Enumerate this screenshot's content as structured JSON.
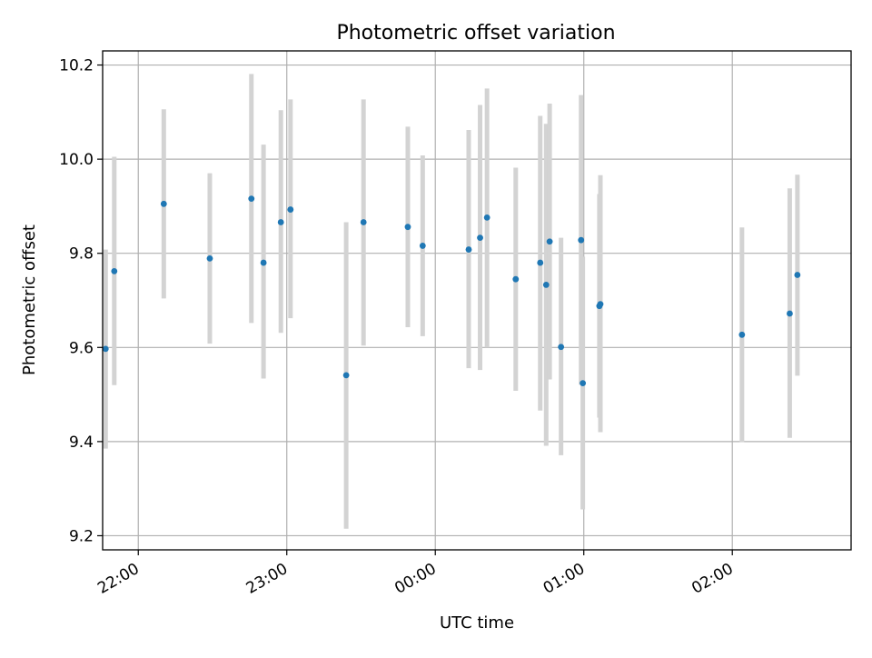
{
  "chart_data": {
    "type": "scatter",
    "title": "Photometric offset variation",
    "xlabel": "UTC time",
    "ylabel": "Photometric offset",
    "x_tick_labels": [
      "22:00",
      "23:00",
      "00:00",
      "01:00",
      "02:00"
    ],
    "y_tick_labels": [
      "9.2",
      "9.4",
      "9.6",
      "9.8",
      "10.0",
      "10.2"
    ],
    "x_ticks_min": [
      1320,
      1380,
      1440,
      1500,
      1560
    ],
    "y_ticks": [
      9.2,
      9.4,
      9.6,
      9.8,
      10.0,
      10.2
    ],
    "xlim_min": [
      1305.6,
      1608
    ],
    "ylim": [
      9.17,
      10.23
    ],
    "grid": true,
    "marker_color": "#1f77b4",
    "errorbar_color": "#d3d3d3",
    "points": [
      {
        "t_min": 1306.8,
        "y": 9.597,
        "ylo": 9.385,
        "yhi": 9.808
      },
      {
        "t_min": 1310.3,
        "y": 9.762,
        "ylo": 9.52,
        "yhi": 10.005
      },
      {
        "t_min": 1330.3,
        "y": 9.905,
        "ylo": 9.704,
        "yhi": 10.106
      },
      {
        "t_min": 1348.9,
        "y": 9.789,
        "ylo": 9.608,
        "yhi": 9.97
      },
      {
        "t_min": 1365.7,
        "y": 9.916,
        "ylo": 9.652,
        "yhi": 10.181
      },
      {
        "t_min": 1370.6,
        "y": 9.78,
        "ylo": 9.534,
        "yhi": 10.031
      },
      {
        "t_min": 1377.6,
        "y": 9.866,
        "ylo": 9.631,
        "yhi": 10.104
      },
      {
        "t_min": 1381.5,
        "y": 9.893,
        "ylo": 9.662,
        "yhi": 10.127
      },
      {
        "t_min": 1404.0,
        "y": 9.541,
        "ylo": 9.215,
        "yhi": 9.866
      },
      {
        "t_min": 1411.0,
        "y": 9.866,
        "ylo": 9.604,
        "yhi": 10.127
      },
      {
        "t_min": 1428.9,
        "y": 9.856,
        "ylo": 9.643,
        "yhi": 10.069
      },
      {
        "t_min": 1434.9,
        "y": 9.816,
        "ylo": 9.624,
        "yhi": 10.008
      },
      {
        "t_min": 1453.5,
        "y": 9.808,
        "ylo": 9.556,
        "yhi": 10.062
      },
      {
        "t_min": 1458.1,
        "y": 9.833,
        "ylo": 9.552,
        "yhi": 10.115
      },
      {
        "t_min": 1460.9,
        "y": 9.876,
        "ylo": 9.6,
        "yhi": 10.15
      },
      {
        "t_min": 1472.5,
        "y": 9.745,
        "ylo": 9.508,
        "yhi": 9.982
      },
      {
        "t_min": 1482.4,
        "y": 9.78,
        "ylo": 9.466,
        "yhi": 10.092
      },
      {
        "t_min": 1484.8,
        "y": 9.733,
        "ylo": 9.391,
        "yhi": 10.075
      },
      {
        "t_min": 1486.2,
        "y": 9.825,
        "ylo": 9.532,
        "yhi": 10.118
      },
      {
        "t_min": 1490.8,
        "y": 9.601,
        "ylo": 9.371,
        "yhi": 9.833
      },
      {
        "t_min": 1498.9,
        "y": 9.828,
        "ylo": 9.521,
        "yhi": 10.136
      },
      {
        "t_min": 1499.6,
        "y": 9.524,
        "ylo": 9.256,
        "yhi": 9.793
      },
      {
        "t_min": 1506.3,
        "y": 9.688,
        "ylo": 9.451,
        "yhi": 9.926
      },
      {
        "t_min": 1506.7,
        "y": 9.692,
        "ylo": 9.42,
        "yhi": 9.966
      },
      {
        "t_min": 1563.9,
        "y": 9.627,
        "ylo": 9.399,
        "yhi": 9.855
      },
      {
        "t_min": 1583.2,
        "y": 9.672,
        "ylo": 9.408,
        "yhi": 9.938
      },
      {
        "t_min": 1586.3,
        "y": 9.754,
        "ylo": 9.54,
        "yhi": 9.967
      }
    ]
  }
}
